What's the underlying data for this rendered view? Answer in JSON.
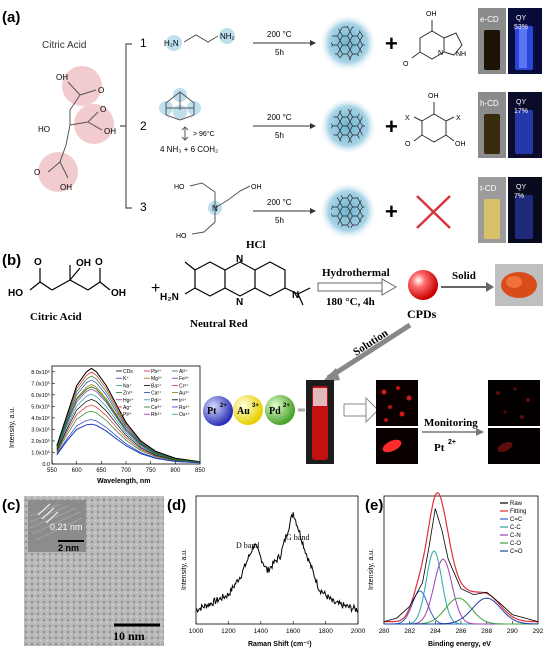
{
  "panel_a": {
    "label": "(a)",
    "reactant": "Citric Acid",
    "routes": [
      {
        "num": "1",
        "condition_temp": "200 °C",
        "condition_time": "5h",
        "product_name": "e-CD",
        "qy": "QY",
        "qy_value": "53%"
      },
      {
        "num": "2",
        "condition_temp": "200 °C",
        "condition_time": "5h",
        "product_name": "h-CD",
        "qy": "QY",
        "qy_value": "17%",
        "precursor_note": "> 96°C",
        "precursor_products": "4 NH₃ + 6 COH₂"
      },
      {
        "num": "3",
        "condition_temp": "200 °C",
        "condition_time": "5h",
        "product_name": "t-CD",
        "qy": "QY",
        "qy_value": "7%"
      }
    ],
    "atom_labels": {
      "oh": "OH",
      "ho": "HO",
      "o": "O",
      "nh": "NH",
      "n": "N",
      "x": "X",
      "h2n": "H₂N",
      "nh2": "NH₂",
      "plus": "+"
    },
    "colors": {
      "highlight": "#e8a9ad",
      "dot_bg": "#aed7ea",
      "uv": "#2a46d8",
      "cross": "#d9363e"
    }
  },
  "panel_b": {
    "label": "(b)",
    "reactant1": "Citric Acid",
    "reactant2": "Neutral Red",
    "hcl": "HCl",
    "arrow_top": "Hydrothermal",
    "arrow_bottom": "180 °C, 4h",
    "product": "CPDs",
    "solid": "Solid",
    "solution": "Solution",
    "ions": [
      "Pt",
      "Au",
      "Pd"
    ],
    "ion_charges": [
      "2+",
      "3+",
      "2+"
    ],
    "monitoring": "Monitoring",
    "monitor_ion": "Pt",
    "monitor_charge": "2+",
    "labels": {
      "h2n": "H₂N",
      "n": "N",
      "oh": "OH",
      "ho": "HO",
      "o": "O",
      "plus": "+"
    },
    "spectrum": {
      "xlabel": "Wavelength, nm",
      "ylabel": "Intensity, a.u.",
      "xticks": [
        "550",
        "600",
        "650",
        "700",
        "750",
        "800",
        "850"
      ],
      "yticks": [
        "0.0",
        "1.0x10⁵",
        "2.0x10⁵",
        "3.0x10⁵",
        "4.0x10⁵",
        "5.0x10⁵",
        "6.0x10⁵",
        "7.0x10⁵",
        "8.0x10⁵"
      ],
      "legend": [
        "CDs",
        "Pb²⁺",
        "Al³⁺",
        "K⁺",
        "Mg²⁺",
        "Fe³⁺",
        "Na⁺",
        "Ba²⁺",
        "Cr³⁺",
        "Zn²⁺",
        "Ca²⁺",
        "Au³⁺",
        "Hg²⁺",
        "Pd²⁺",
        "Ir³⁺",
        "Ag⁺",
        "Ce³⁺",
        "Ru³⁺",
        "Pt²⁺",
        "Rh³⁺",
        "Os⁴⁺"
      ]
    }
  },
  "panel_c": {
    "label": "(c)",
    "lattice": "0.21 nm",
    "inset_scale": "2 nm",
    "scale": "10 nm"
  },
  "panel_d": {
    "label": "(d)",
    "ylabel": "Intensity, a.u.",
    "xlabel": "Raman Shift (cm⁻¹)",
    "d_band": "D band",
    "g_band": "G band",
    "xticks": [
      "1000",
      "1200",
      "1400",
      "1600",
      "1800",
      "2000"
    ]
  },
  "panel_e": {
    "label": "(e)",
    "ylabel": "Intensity, a.u.",
    "xlabel": "Binding energy, eV",
    "xticks": [
      "280",
      "282",
      "284",
      "286",
      "288",
      "290",
      "292"
    ],
    "legend": [
      "Raw",
      "Fitting",
      "C=C",
      "C-C",
      "C-N",
      "C-O",
      "C=O"
    ],
    "legend_colors": [
      "#000000",
      "#e0303a",
      "#3a5fcd",
      "#2aa6a0",
      "#9b3fb6",
      "#3da33d",
      "#1f3f9f"
    ]
  },
  "chart_data": [
    {
      "type": "line",
      "title": "",
      "xlabel": "Wavelength, nm",
      "ylabel": "Intensity, a.u.",
      "xlim": [
        550,
        850
      ],
      "ylim": [
        0,
        850000
      ],
      "x": [
        560,
        580,
        600,
        620,
        630,
        640,
        660,
        680,
        700,
        730,
        760,
        800,
        850
      ],
      "series": [
        {
          "name": "CDs",
          "values": [
            160000,
            420000,
            680000,
            800000,
            830000,
            800000,
            680000,
            520000,
            360000,
            200000,
            110000,
            50000,
            20000
          ]
        },
        {
          "name": "Pd²⁺",
          "values": [
            130000,
            360000,
            560000,
            650000,
            670000,
            650000,
            550000,
            420000,
            300000,
            170000,
            90000,
            40000,
            15000
          ]
        },
        {
          "name": "Pt²⁺",
          "values": [
            80000,
            200000,
            300000,
            340000,
            345000,
            335000,
            285000,
            220000,
            160000,
            90000,
            50000,
            22000,
            10000
          ]
        }
      ]
    },
    {
      "type": "line",
      "title": "",
      "xlabel": "Raman Shift (cm⁻¹)",
      "ylabel": "Intensity, a.u.",
      "xlim": [
        1000,
        2000
      ],
      "x": [
        1000,
        1100,
        1200,
        1280,
        1360,
        1440,
        1520,
        1600,
        1680,
        1760,
        1850,
        2000
      ],
      "series": [
        {
          "name": "",
          "values": [
            0.12,
            0.18,
            0.25,
            0.42,
            0.68,
            0.45,
            0.58,
            0.95,
            0.6,
            0.3,
            0.18,
            0.12
          ]
        }
      ]
    },
    {
      "type": "line",
      "title": "",
      "xlabel": "Binding energy, eV",
      "ylabel": "Intensity, a.u.",
      "xlim": [
        280,
        292
      ],
      "x": [
        280,
        281,
        282,
        283,
        283.5,
        284,
        284.5,
        285,
        286,
        287,
        288,
        289,
        290,
        292
      ],
      "series": [
        {
          "name": "Raw",
          "values": [
            0.02,
            0.05,
            0.15,
            0.35,
            0.65,
            0.98,
            0.8,
            0.55,
            0.3,
            0.25,
            0.27,
            0.18,
            0.08,
            0.02
          ]
        }
      ]
    }
  ]
}
